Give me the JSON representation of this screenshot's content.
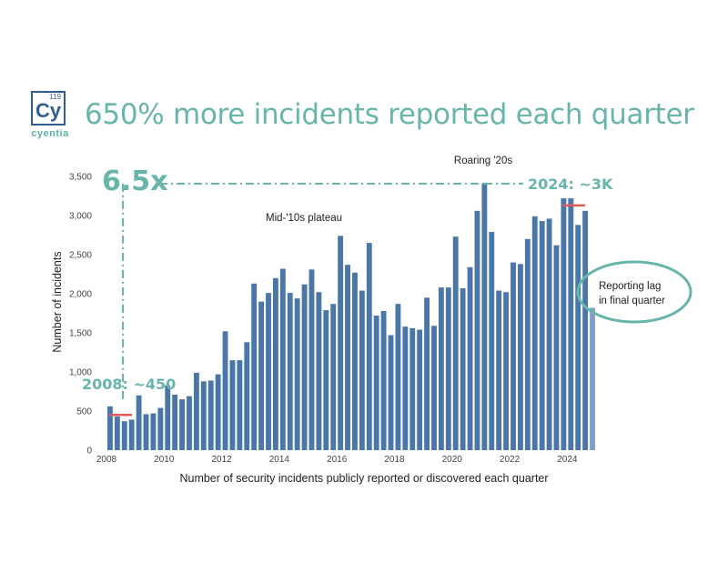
{
  "logo": {
    "number": "119",
    "symbol": "Cy",
    "name": "cyentia"
  },
  "title": "650% more incidents reported each quarter",
  "chart_data": {
    "type": "bar",
    "title": "650% more incidents reported each quarter",
    "xlabel": "Number of security incidents publicly reported or discovered each quarter",
    "ylabel": "Number of incidents",
    "ylim": [
      0,
      3500
    ],
    "xlim": [
      2008,
      2025
    ],
    "yticks": [
      0,
      500,
      1000,
      1500,
      2000,
      2500,
      3000,
      3500
    ],
    "ytick_labels": [
      "0",
      "500",
      "1,000",
      "1,500",
      "2,000",
      "2,500",
      "3,000",
      "3,500"
    ],
    "xticks": [
      2008,
      2010,
      2012,
      2014,
      2016,
      2018,
      2020,
      2022,
      2024
    ],
    "xtick_labels": [
      "2008",
      "2010",
      "2012",
      "2014",
      "2016",
      "2018",
      "2020",
      "2022",
      "2024"
    ],
    "grid": false,
    "bar_color": "#4a76a8",
    "last_bar_color": "#7f9fc2",
    "quarters": [
      "2008 Q1",
      "2008 Q2",
      "2008 Q3",
      "2008 Q4",
      "2009 Q1",
      "2009 Q2",
      "2009 Q3",
      "2009 Q4",
      "2010 Q1",
      "2010 Q2",
      "2010 Q3",
      "2010 Q4",
      "2011 Q1",
      "2011 Q2",
      "2011 Q3",
      "2011 Q4",
      "2012 Q1",
      "2012 Q2",
      "2012 Q3",
      "2012 Q4",
      "2013 Q1",
      "2013 Q2",
      "2013 Q3",
      "2013 Q4",
      "2014 Q1",
      "2014 Q2",
      "2014 Q3",
      "2014 Q4",
      "2015 Q1",
      "2015 Q2",
      "2015 Q3",
      "2015 Q4",
      "2016 Q1",
      "2016 Q2",
      "2016 Q3",
      "2016 Q4",
      "2017 Q1",
      "2017 Q2",
      "2017 Q3",
      "2017 Q4",
      "2018 Q1",
      "2018 Q2",
      "2018 Q3",
      "2018 Q4",
      "2019 Q1",
      "2019 Q2",
      "2019 Q3",
      "2019 Q4",
      "2020 Q1",
      "2020 Q2",
      "2020 Q3",
      "2020 Q4",
      "2021 Q1",
      "2021 Q2",
      "2021 Q3",
      "2021 Q4",
      "2022 Q1",
      "2022 Q2",
      "2022 Q3",
      "2022 Q4",
      "2023 Q1",
      "2023 Q2",
      "2023 Q3",
      "2023 Q4",
      "2024 Q1",
      "2024 Q2",
      "2024 Q3",
      "2024 Q4"
    ],
    "values": [
      560,
      430,
      370,
      390,
      700,
      460,
      470,
      540,
      830,
      710,
      650,
      690,
      990,
      880,
      890,
      970,
      1520,
      1150,
      1150,
      1380,
      2130,
      1900,
      2010,
      2200,
      2320,
      2010,
      1940,
      2120,
      2310,
      2020,
      1790,
      1870,
      2740,
      2370,
      2270,
      2040,
      2650,
      1720,
      1780,
      1470,
      1870,
      1580,
      1560,
      1540,
      1950,
      1590,
      2080,
      2080,
      2730,
      2070,
      2340,
      3060,
      3410,
      2790,
      2040,
      2020,
      2400,
      2380,
      2700,
      2990,
      2930,
      2960,
      2620,
      3220,
      3220,
      2880,
      3060,
      1820
    ],
    "reference_lines": [
      {
        "label": "2008: ~450",
        "value": 450
      },
      {
        "label": "2024: ~3K",
        "value": 3130
      }
    ],
    "annotations": {
      "multiplier": "6.5x",
      "mid_plateau": "Mid-'10s plateau",
      "roaring": "Roaring '20s",
      "lag_line1": "Reporting lag",
      "lag_line2": "in final quarter"
    },
    "colors": {
      "accent": "#68b5ac",
      "refline": "#e05a5a"
    }
  }
}
